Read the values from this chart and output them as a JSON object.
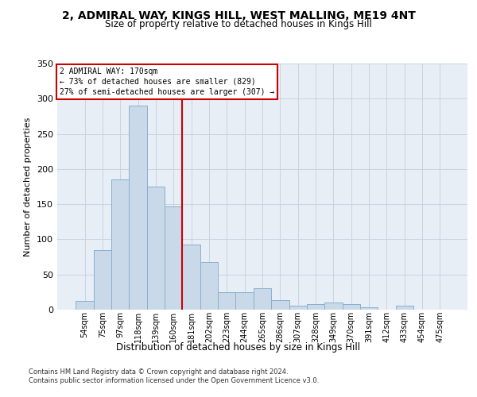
{
  "title": "2, ADMIRAL WAY, KINGS HILL, WEST MALLING, ME19 4NT",
  "subtitle": "Size of property relative to detached houses in Kings Hill",
  "xlabel": "Distribution of detached houses by size in Kings Hill",
  "ylabel": "Number of detached properties",
  "categories": [
    "54sqm",
    "75sqm",
    "97sqm",
    "118sqm",
    "139sqm",
    "160sqm",
    "181sqm",
    "202sqm",
    "223sqm",
    "244sqm",
    "265sqm",
    "286sqm",
    "307sqm",
    "328sqm",
    "349sqm",
    "370sqm",
    "391sqm",
    "412sqm",
    "433sqm",
    "454sqm",
    "475sqm"
  ],
  "values": [
    12,
    85,
    185,
    290,
    175,
    147,
    93,
    68,
    25,
    25,
    30,
    13,
    6,
    8,
    10,
    8,
    3,
    0,
    6,
    0,
    0
  ],
  "bar_color": "#c9d9ea",
  "bar_edge_color": "#8ab0cc",
  "ref_line_x": 5.5,
  "ref_line_color": "#cc0000",
  "annotation_title": "2 ADMIRAL WAY: 170sqm",
  "annotation_line1": "← 73% of detached houses are smaller (829)",
  "annotation_line2": "27% of semi-detached houses are larger (307) →",
  "annotation_box_facecolor": "#ffffff",
  "annotation_box_edgecolor": "#cc0000",
  "grid_color": "#c8d4e2",
  "bg_color": "#e8eef6",
  "footer_line1": "Contains HM Land Registry data © Crown copyright and database right 2024.",
  "footer_line2": "Contains public sector information licensed under the Open Government Licence v3.0.",
  "ylim": [
    0,
    350
  ],
  "yticks": [
    0,
    50,
    100,
    150,
    200,
    250,
    300,
    350
  ]
}
